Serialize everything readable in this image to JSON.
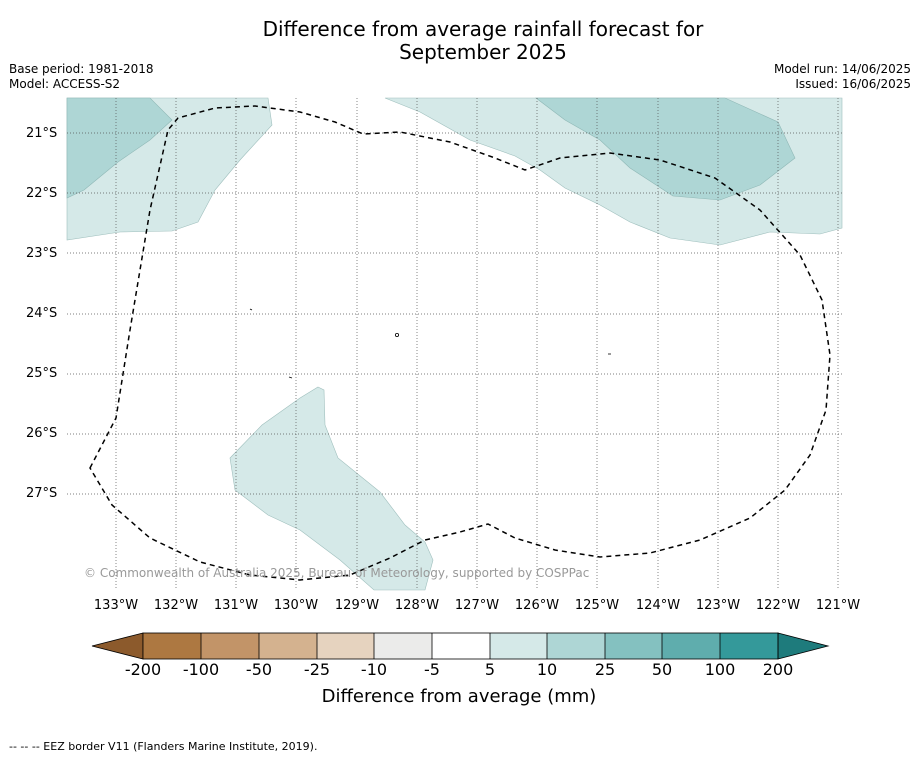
{
  "title": "Difference from average rainfall forecast for September 2025",
  "title_line1": "Difference from average rainfall forecast for",
  "title_line2": "September 2025",
  "meta_left": {
    "base_period": "Base period: 1981-2018",
    "model": "Model: ACCESS-S2"
  },
  "meta_right": {
    "model_run": "Model run: 14/06/2025",
    "issued": "Issued: 16/06/2025"
  },
  "map": {
    "lat_labels": [
      "21°S",
      "22°S",
      "23°S",
      "24°S",
      "25°S",
      "26°S",
      "27°S"
    ],
    "lon_labels": [
      "133°W",
      "132°W",
      "131°W",
      "130°W",
      "129°W",
      "128°W",
      "127°W",
      "126°W",
      "125°W",
      "124°W",
      "123°W",
      "122°W",
      "121°W"
    ],
    "copyright": "© Commonwealth of Australia 2025, Bureau of Meteorology, supported by COSPPac",
    "colors": {
      "light_teal": "#d5e9e8",
      "mid_teal": "#aed6d5",
      "border_dash": "#000000"
    }
  },
  "colorbar": {
    "ticks": [
      "-200",
      "-100",
      "-50",
      "-25",
      "-10",
      "-5",
      "5",
      "10",
      "25",
      "50",
      "100",
      "200"
    ],
    "colors": [
      "#8c5a2c",
      "#ad7841",
      "#c29468",
      "#d4b28f",
      "#e6d3bf",
      "#ebebea",
      "#ffffff",
      "#d5e9e8",
      "#aed6d5",
      "#84c1c0",
      "#5fadad",
      "#34999a",
      "#1e7b7c"
    ],
    "title": "Difference from average (mm)"
  },
  "footer": "--  --  -- EEZ border V11 (Flanders Marine Institute, 2019)."
}
